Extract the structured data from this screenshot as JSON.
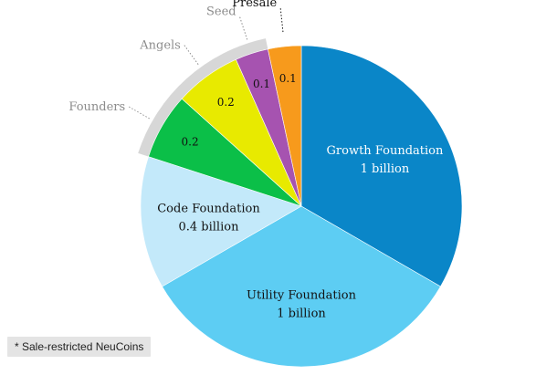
{
  "chart_data": {
    "type": "pie",
    "slices": [
      {
        "name": "Growth Foundation",
        "value": 1,
        "value_label": "1 billion",
        "color": "#0a86c8",
        "text_color": "#ffffff"
      },
      {
        "name": "Utility Foundation",
        "value": 1,
        "value_label": "1 billion",
        "color": "#5dcdf3",
        "text_color": "#111111"
      },
      {
        "name": "Code Foundation",
        "value": 0.4,
        "value_label": "0.4 billion",
        "color": "#c3e9fa",
        "text_color": "#111111"
      },
      {
        "name": "Founders",
        "value": 0.2,
        "value_label": "0.2",
        "color": "#0bbf48",
        "text_color": "#111111",
        "sale_restricted": true
      },
      {
        "name": "Angels",
        "value": 0.2,
        "value_label": "0.2",
        "color": "#e8ea00",
        "text_color": "#111111",
        "sale_restricted": true
      },
      {
        "name": "Seed",
        "value": 0.1,
        "value_label": "0.1",
        "color": "#a653b0",
        "text_color": "#111111",
        "sale_restricted": true
      },
      {
        "name": "Presale",
        "value": 0.1,
        "value_label": "0.1",
        "color": "#f79a1c",
        "text_color": "#111111",
        "sale_restricted": false
      }
    ],
    "restricted_band_color": "#d7d7d7",
    "muted_label_color": "#8c8c8c",
    "strong_label_color": "#111111"
  },
  "footnote": "* Sale-restricted NeuCoins"
}
